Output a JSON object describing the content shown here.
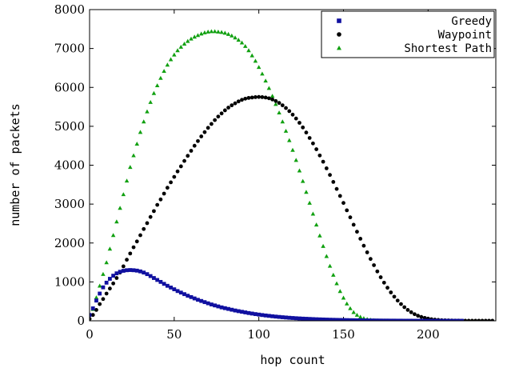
{
  "chart_data": {
    "type": "scatter",
    "title": "",
    "xlabel": "hop count",
    "ylabel": "number of packets",
    "xlim": [
      0,
      240
    ],
    "ylim": [
      0,
      8000
    ],
    "xticks": [
      0,
      50,
      100,
      150,
      200
    ],
    "yticks": [
      0,
      1000,
      2000,
      3000,
      4000,
      5000,
      6000,
      7000,
      8000
    ],
    "grid": false,
    "legend_position": "top-right",
    "series": [
      {
        "name": "Greedy",
        "marker": "square",
        "color": "#1010a0",
        "points": [
          [
            0,
            150
          ],
          [
            2,
            320
          ],
          [
            4,
            520
          ],
          [
            6,
            700
          ],
          [
            8,
            860
          ],
          [
            10,
            980
          ],
          [
            12,
            1080
          ],
          [
            14,
            1160
          ],
          [
            16,
            1220
          ],
          [
            18,
            1260
          ],
          [
            20,
            1285
          ],
          [
            22,
            1300
          ],
          [
            24,
            1305
          ],
          [
            26,
            1300
          ],
          [
            28,
            1290
          ],
          [
            30,
            1270
          ],
          [
            32,
            1240
          ],
          [
            34,
            1200
          ],
          [
            36,
            1150
          ],
          [
            38,
            1100
          ],
          [
            40,
            1050
          ],
          [
            42,
            1000
          ],
          [
            44,
            950
          ],
          [
            46,
            900
          ],
          [
            48,
            855
          ],
          [
            50,
            810
          ],
          [
            52,
            765
          ],
          [
            54,
            725
          ],
          [
            56,
            685
          ],
          [
            58,
            645
          ],
          [
            60,
            610
          ],
          [
            62,
            575
          ],
          [
            64,
            540
          ],
          [
            66,
            510
          ],
          [
            68,
            480
          ],
          [
            70,
            450
          ],
          [
            72,
            420
          ],
          [
            74,
            395
          ],
          [
            76,
            370
          ],
          [
            78,
            345
          ],
          [
            80,
            325
          ],
          [
            82,
            305
          ],
          [
            84,
            285
          ],
          [
            86,
            265
          ],
          [
            88,
            248
          ],
          [
            90,
            232
          ],
          [
            92,
            216
          ],
          [
            94,
            200
          ],
          [
            96,
            186
          ],
          [
            98,
            172
          ],
          [
            100,
            160
          ],
          [
            102,
            148
          ],
          [
            104,
            137
          ],
          [
            106,
            127
          ],
          [
            108,
            117
          ],
          [
            110,
            108
          ],
          [
            112,
            100
          ],
          [
            114,
            92
          ],
          [
            116,
            85
          ],
          [
            118,
            78
          ],
          [
            120,
            72
          ],
          [
            122,
            66
          ],
          [
            124,
            61
          ],
          [
            126,
            56
          ],
          [
            128,
            52
          ],
          [
            130,
            48
          ],
          [
            132,
            44
          ],
          [
            134,
            40
          ],
          [
            136,
            37
          ],
          [
            138,
            34
          ],
          [
            140,
            31
          ],
          [
            142,
            28
          ],
          [
            144,
            26
          ],
          [
            146,
            24
          ],
          [
            148,
            22
          ],
          [
            150,
            20
          ],
          [
            152,
            18
          ],
          [
            154,
            16
          ],
          [
            156,
            15
          ],
          [
            158,
            13
          ],
          [
            160,
            12
          ],
          [
            162,
            11
          ],
          [
            164,
            10
          ],
          [
            166,
            9
          ],
          [
            168,
            8
          ],
          [
            170,
            7
          ],
          [
            172,
            6
          ],
          [
            174,
            5
          ],
          [
            176,
            5
          ],
          [
            178,
            4
          ],
          [
            180,
            4
          ],
          [
            182,
            3
          ],
          [
            184,
            3
          ],
          [
            186,
            2
          ],
          [
            188,
            2
          ],
          [
            190,
            2
          ],
          [
            192,
            1
          ],
          [
            194,
            1
          ],
          [
            196,
            1
          ],
          [
            198,
            1
          ],
          [
            200,
            1
          ],
          [
            202,
            0
          ],
          [
            204,
            0
          ],
          [
            206,
            0
          ],
          [
            208,
            0
          ],
          [
            210,
            0
          ],
          [
            212,
            0
          ],
          [
            214,
            0
          ],
          [
            216,
            0
          ],
          [
            218,
            0
          ],
          [
            220,
            0
          ]
        ]
      },
      {
        "name": "Waypoint",
        "marker": "circle",
        "color": "#000000",
        "points": [
          [
            0,
            50
          ],
          [
            2,
            150
          ],
          [
            4,
            280
          ],
          [
            6,
            430
          ],
          [
            8,
            560
          ],
          [
            10,
            700
          ],
          [
            12,
            830
          ],
          [
            14,
            960
          ],
          [
            16,
            1100
          ],
          [
            18,
            1240
          ],
          [
            20,
            1400
          ],
          [
            22,
            1570
          ],
          [
            24,
            1730
          ],
          [
            26,
            1890
          ],
          [
            28,
            2040
          ],
          [
            30,
            2200
          ],
          [
            32,
            2360
          ],
          [
            34,
            2510
          ],
          [
            36,
            2670
          ],
          [
            38,
            2820
          ],
          [
            40,
            2980
          ],
          [
            42,
            3120
          ],
          [
            44,
            3270
          ],
          [
            46,
            3420
          ],
          [
            48,
            3560
          ],
          [
            50,
            3700
          ],
          [
            52,
            3840
          ],
          [
            54,
            3970
          ],
          [
            56,
            4110
          ],
          [
            58,
            4240
          ],
          [
            60,
            4370
          ],
          [
            62,
            4500
          ],
          [
            64,
            4620
          ],
          [
            66,
            4740
          ],
          [
            68,
            4850
          ],
          [
            70,
            4960
          ],
          [
            72,
            5060
          ],
          [
            74,
            5160
          ],
          [
            76,
            5250
          ],
          [
            78,
            5330
          ],
          [
            80,
            5410
          ],
          [
            82,
            5480
          ],
          [
            84,
            5540
          ],
          [
            86,
            5590
          ],
          [
            88,
            5640
          ],
          [
            90,
            5680
          ],
          [
            92,
            5710
          ],
          [
            94,
            5730
          ],
          [
            96,
            5740
          ],
          [
            98,
            5750
          ],
          [
            100,
            5755
          ],
          [
            102,
            5750
          ],
          [
            104,
            5740
          ],
          [
            106,
            5720
          ],
          [
            108,
            5690
          ],
          [
            110,
            5650
          ],
          [
            112,
            5600
          ],
          [
            114,
            5540
          ],
          [
            116,
            5470
          ],
          [
            118,
            5390
          ],
          [
            120,
            5300
          ],
          [
            122,
            5200
          ],
          [
            124,
            5090
          ],
          [
            126,
            4970
          ],
          [
            128,
            4840
          ],
          [
            130,
            4700
          ],
          [
            132,
            4560
          ],
          [
            134,
            4410
          ],
          [
            136,
            4250
          ],
          [
            138,
            4090
          ],
          [
            140,
            3920
          ],
          [
            142,
            3750
          ],
          [
            144,
            3570
          ],
          [
            146,
            3390
          ],
          [
            148,
            3210
          ],
          [
            150,
            3030
          ],
          [
            152,
            2840
          ],
          [
            154,
            2660
          ],
          [
            156,
            2470
          ],
          [
            158,
            2290
          ],
          [
            160,
            2110
          ],
          [
            162,
            1930
          ],
          [
            164,
            1760
          ],
          [
            166,
            1590
          ],
          [
            168,
            1430
          ],
          [
            170,
            1270
          ],
          [
            172,
            1120
          ],
          [
            174,
            980
          ],
          [
            176,
            850
          ],
          [
            178,
            730
          ],
          [
            180,
            620
          ],
          [
            182,
            520
          ],
          [
            184,
            430
          ],
          [
            186,
            350
          ],
          [
            188,
            280
          ],
          [
            190,
            220
          ],
          [
            192,
            170
          ],
          [
            194,
            130
          ],
          [
            196,
            100
          ],
          [
            198,
            75
          ],
          [
            200,
            55
          ],
          [
            202,
            40
          ],
          [
            204,
            30
          ],
          [
            206,
            22
          ],
          [
            208,
            16
          ],
          [
            210,
            12
          ],
          [
            212,
            9
          ],
          [
            214,
            7
          ],
          [
            216,
            5
          ],
          [
            218,
            4
          ],
          [
            220,
            3
          ],
          [
            222,
            2
          ],
          [
            224,
            2
          ],
          [
            226,
            1
          ],
          [
            228,
            1
          ],
          [
            230,
            1
          ],
          [
            232,
            1
          ],
          [
            234,
            1
          ],
          [
            236,
            1
          ],
          [
            238,
            1
          ]
        ]
      },
      {
        "name": "Shortest Path",
        "marker": "triangle",
        "color": "#10a010",
        "points": [
          [
            0,
            80
          ],
          [
            2,
            300
          ],
          [
            4,
            600
          ],
          [
            6,
            900
          ],
          [
            8,
            1200
          ],
          [
            10,
            1500
          ],
          [
            12,
            1850
          ],
          [
            14,
            2200
          ],
          [
            16,
            2550
          ],
          [
            18,
            2900
          ],
          [
            20,
            3250
          ],
          [
            22,
            3600
          ],
          [
            24,
            3950
          ],
          [
            26,
            4250
          ],
          [
            28,
            4550
          ],
          [
            30,
            4850
          ],
          [
            32,
            5120
          ],
          [
            34,
            5380
          ],
          [
            36,
            5620
          ],
          [
            38,
            5850
          ],
          [
            40,
            6050
          ],
          [
            42,
            6240
          ],
          [
            44,
            6420
          ],
          [
            46,
            6580
          ],
          [
            48,
            6720
          ],
          [
            50,
            6840
          ],
          [
            52,
            6950
          ],
          [
            54,
            7040
          ],
          [
            56,
            7120
          ],
          [
            58,
            7190
          ],
          [
            60,
            7250
          ],
          [
            62,
            7300
          ],
          [
            64,
            7340
          ],
          [
            66,
            7380
          ],
          [
            68,
            7410
          ],
          [
            70,
            7430
          ],
          [
            72,
            7440
          ],
          [
            74,
            7440
          ],
          [
            76,
            7430
          ],
          [
            78,
            7420
          ],
          [
            80,
            7400
          ],
          [
            82,
            7370
          ],
          [
            84,
            7330
          ],
          [
            86,
            7280
          ],
          [
            88,
            7220
          ],
          [
            90,
            7150
          ],
          [
            92,
            7060
          ],
          [
            94,
            6950
          ],
          [
            96,
            6820
          ],
          [
            98,
            6680
          ],
          [
            100,
            6520
          ],
          [
            102,
            6350
          ],
          [
            104,
            6170
          ],
          [
            106,
            5980
          ],
          [
            108,
            5780
          ],
          [
            110,
            5570
          ],
          [
            112,
            5350
          ],
          [
            114,
            5120
          ],
          [
            116,
            4880
          ],
          [
            118,
            4640
          ],
          [
            120,
            4390
          ],
          [
            122,
            4130
          ],
          [
            124,
            3860
          ],
          [
            126,
            3590
          ],
          [
            128,
            3310
          ],
          [
            130,
            3030
          ],
          [
            132,
            2750
          ],
          [
            134,
            2470
          ],
          [
            136,
            2190
          ],
          [
            138,
            1920
          ],
          [
            140,
            1660
          ],
          [
            142,
            1410
          ],
          [
            144,
            1180
          ],
          [
            146,
            960
          ],
          [
            148,
            760
          ],
          [
            150,
            590
          ],
          [
            152,
            440
          ],
          [
            154,
            320
          ],
          [
            156,
            220
          ],
          [
            158,
            150
          ],
          [
            160,
            100
          ],
          [
            162,
            65
          ],
          [
            164,
            40
          ],
          [
            166,
            25
          ],
          [
            168,
            15
          ],
          [
            170,
            10
          ],
          [
            172,
            6
          ],
          [
            174,
            4
          ],
          [
            176,
            2
          ],
          [
            178,
            1
          ],
          [
            180,
            1
          ],
          [
            182,
            1
          ],
          [
            184,
            0
          ],
          [
            186,
            0
          ],
          [
            188,
            0
          ],
          [
            190,
            0
          ]
        ]
      }
    ]
  }
}
